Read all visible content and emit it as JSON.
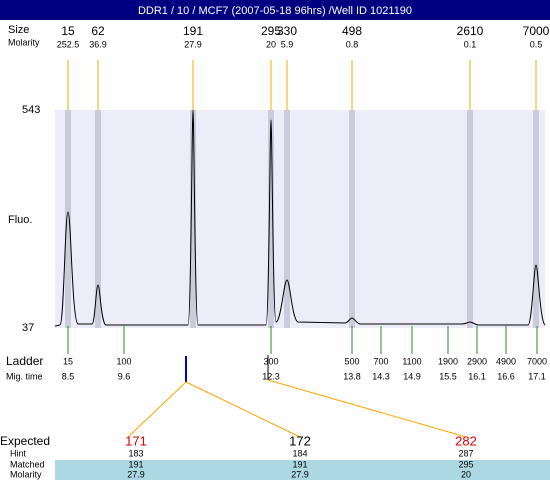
{
  "header": {
    "title": "DDR1 / 10 / MCF7 (2007-05-18 96hrs) /Well ID 1021190"
  },
  "top": {
    "size_label": "Size",
    "molarity_label": "Molarity",
    "peaks": [
      {
        "size": "15",
        "molarity": "252.5"
      },
      {
        "size": "62",
        "molarity": "36.9"
      },
      {
        "size": "191",
        "molarity": "27.9"
      },
      {
        "size": "295",
        "molarity": "20"
      },
      {
        "size": "330",
        "molarity": "5.9"
      },
      {
        "size": "498",
        "molarity": "0.8"
      },
      {
        "size": "2610",
        "molarity": "0.1"
      },
      {
        "size": "7000",
        "molarity": "0.5"
      }
    ]
  },
  "plot": {
    "y_top": "543",
    "y_bottom": "37",
    "y_label": "Fluo."
  },
  "ladder": {
    "label": "Ladder",
    "time_label": "Mig. time",
    "items": [
      {
        "size": "15",
        "time": "8.5"
      },
      {
        "size": "100",
        "time": "9.6"
      },
      {
        "size": "300",
        "time": "12.3"
      },
      {
        "size": "500",
        "time": "13.8"
      },
      {
        "size": "700",
        "time": "14.3"
      },
      {
        "size": "1100",
        "time": "14.9"
      },
      {
        "size": "1900",
        "time": "15.5"
      },
      {
        "size": "2900",
        "time": "16.1"
      },
      {
        "size": "4900",
        "time": "16.6"
      },
      {
        "size": "7000",
        "time": "17.1"
      }
    ]
  },
  "table": {
    "row_labels": [
      "Expected",
      "Hint",
      "Matched",
      "Molarity"
    ],
    "columns": [
      {
        "expected": "171",
        "color": "#e00000",
        "hint": "183",
        "matched": "191",
        "molarity": "27.9"
      },
      {
        "expected": "172",
        "color": "#000000",
        "hint": "184",
        "matched": "191",
        "molarity": "27.9"
      },
      {
        "expected": "282",
        "color": "#e00000",
        "hint": "287",
        "matched": "295",
        "molarity": "20"
      }
    ]
  }
}
